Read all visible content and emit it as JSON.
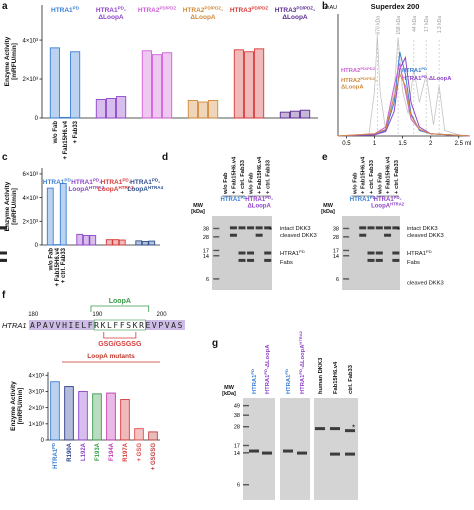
{
  "chart_data": [
    {
      "letter": "a",
      "type": "bar",
      "ylabel": "Enzyme Activity",
      "ylabel2": "[mRFU/min]",
      "ylim": [
        0,
        5800
      ],
      "yticks": [
        0,
        {
          "value": 2000,
          "label": "2×10³"
        },
        {
          "value": 4000,
          "label": "4×10³"
        }
      ],
      "categories": [
        "w/o Fab",
        "+ Fab15H6.v4",
        "+ Fab33"
      ],
      "groups": [
        {
          "name": "HTRA1",
          "sup": "PD",
          "color": "#3b7fd4",
          "values": [
            3600,
            30,
            3400
          ]
        },
        {
          "name": "HTRA1",
          "sup": "PD",
          "tail": "-",
          "line2": "ΔLoopA",
          "color": "#8e44c9",
          "values": [
            950,
            1000,
            1100
          ]
        },
        {
          "name": "HTRA2",
          "sup": "PD/PDZ",
          "color": "#d060d8",
          "values": [
            3450,
            3250,
            3350
          ]
        },
        {
          "name": "HTRA2",
          "sup": "PD/PDZ",
          "tail": "-",
          "line2": "ΔLoopA",
          "color": "#d08a3c",
          "values": [
            900,
            820,
            900
          ]
        },
        {
          "name": "HTRA3",
          "sup": "PD/PDZ",
          "color": "#d83a3a",
          "values": [
            3500,
            3400,
            3550
          ]
        },
        {
          "name": "HTRA3",
          "sup": "PD/PDZ",
          "tail": "-",
          "line2": "ΔLoopA",
          "color": "#5b2d90",
          "values": [
            300,
            350,
            400
          ]
        }
      ]
    },
    {
      "letter": "b",
      "type": "line",
      "title": "Superdex 200",
      "ylabel": "mAU",
      "xlabel": "ml",
      "xlim": [
        0.35,
        2.7
      ],
      "ylim": [
        0,
        100
      ],
      "xticks": [
        0.5,
        1,
        1.5,
        2,
        2.5
      ],
      "markers": [
        {
          "label": "670 kDa",
          "x": 1.05
        },
        {
          "label": "158 kDa",
          "x": 1.42
        },
        {
          "label": "44 kDa",
          "x": 1.7
        },
        {
          "label": "17 kDa",
          "x": 1.92
        },
        {
          "label": "1.3 kDa",
          "x": 2.15
        }
      ],
      "series": [
        {
          "color": "#c4c4c4",
          "x": [
            0.35,
            0.9,
            1.0,
            1.05,
            1.1,
            1.2,
            1.35,
            1.42,
            1.5,
            1.6,
            1.7,
            1.8,
            1.92,
            2.05,
            2.15,
            2.25,
            2.5,
            2.7
          ],
          "values": [
            0,
            1,
            40,
            90,
            40,
            5,
            40,
            88,
            40,
            20,
            60,
            30,
            55,
            10,
            45,
            5,
            1,
            0
          ]
        },
        {
          "name": "HTRA1",
          "sup": "PD",
          "color": "#3b7fd4",
          "x": [
            0.35,
            1.0,
            1.2,
            1.35,
            1.45,
            1.55,
            1.65,
            1.8,
            2.0,
            2.7
          ],
          "values": [
            0,
            1,
            5,
            30,
            75,
            55,
            20,
            5,
            2,
            0
          ]
        },
        {
          "name": "HTRA1",
          "sup": "PD",
          "tail": "-ΔLoopA",
          "color": "#8e44c9",
          "x": [
            0.35,
            1.0,
            1.2,
            1.35,
            1.45,
            1.55,
            1.65,
            1.8,
            2.0,
            2.7
          ],
          "values": [
            0,
            1,
            4,
            22,
            60,
            70,
            30,
            8,
            2,
            0
          ]
        },
        {
          "name": "HTRA2",
          "sup": "PD/PDZ",
          "color": "#d060d8",
          "x": [
            0.35,
            1.0,
            1.2,
            1.35,
            1.45,
            1.55,
            1.65,
            1.8,
            2.0,
            2.7
          ],
          "values": [
            0,
            2,
            8,
            45,
            65,
            40,
            15,
            6,
            2,
            0
          ]
        },
        {
          "name": "HTRA2",
          "sup": "PD/PDZ",
          "tail": "-",
          "line2": "ΔLoopA",
          "color": "#d08a3c",
          "x": [
            0.35,
            1.0,
            1.2,
            1.35,
            1.45,
            1.55,
            1.65,
            1.8,
            2.0,
            2.7
          ],
          "values": [
            0,
            2,
            6,
            35,
            55,
            45,
            18,
            6,
            2,
            0
          ]
        }
      ]
    },
    {
      "letter": "c",
      "type": "bar",
      "ylabel": "Enzyme Activity",
      "ylabel2": "[mRFU/min]",
      "ylim": [
        0,
        6500
      ],
      "yticks": [
        0,
        {
          "value": 2000,
          "label": "2×10³"
        },
        {
          "value": 4000,
          "label": "4×10³"
        },
        {
          "value": 6000,
          "label": "6×10³"
        }
      ],
      "categories": [
        "w/o Fab",
        "+ Fab15H6.v4",
        "+ ctrl. Fab33"
      ],
      "groups": [
        {
          "name": "HTRA1",
          "sup": "PD",
          "color": "#3b7fd4",
          "values": [
            4800,
            30,
            5200
          ]
        },
        {
          "name": "HTRA1",
          "sup": "PD",
          "tail": "-",
          "line2": "LoopA",
          "sup2": "HTRA2",
          "color": "#8e44c9",
          "values": [
            900,
            800,
            800
          ]
        },
        {
          "name": "HTRA1",
          "sup": "PD",
          "tail": "-",
          "line2": "LoopA",
          "sup2": "HTRA3",
          "color": "#d83a3a",
          "values": [
            450,
            450,
            420
          ]
        },
        {
          "name": "HTRA1",
          "sup": "PD",
          "tail": "-",
          "line2": "LoopA",
          "sup2": "HTRA4",
          "color": "#2f4f8f",
          "values": [
            350,
            300,
            330
          ]
        }
      ]
    },
    {
      "letter": "f",
      "type": "bar",
      "ylabel": "Enzyme Activity",
      "ylabel2": "[mRFU/min]",
      "ylim": [
        0,
        4200
      ],
      "subtitle": "LoopA mutants",
      "yticks": [
        0,
        {
          "value": 1000,
          "label": "1×10³"
        },
        {
          "value": 2000,
          "label": "2×10³"
        },
        {
          "value": 3000,
          "label": "3×10³"
        },
        {
          "value": 4000,
          "label": "4×10³"
        }
      ],
      "categories": [
        {
          "name": "HTRA1",
          "sup": "PD"
        },
        {
          "name": "R190A"
        },
        {
          "name": "L192A"
        },
        {
          "name": "F193A"
        },
        {
          "name": "F194A"
        },
        {
          "name": "R197A"
        },
        {
          "name": "+ GSG"
        },
        {
          "name": "+ GSGSG"
        }
      ],
      "values": [
        3600,
        3300,
        3000,
        2850,
        2900,
        2500,
        700,
        500
      ],
      "colors": [
        "#3b7fd4",
        "#2c3e8f",
        "#8e44c9",
        "#3a9a4a",
        "#c03ab0",
        "#d83a3a",
        "#e05050",
        "#c04040"
      ]
    }
  ],
  "sequence": {
    "gene": "HTRA1",
    "residues": "APAVVHIELFRKLFFSKREVPVAS",
    "positions": [
      180,
      190,
      200
    ],
    "loop": "LoopA",
    "insert": "GSG/GSGSG"
  },
  "gels": [
    {
      "letter": "d",
      "mw": "MW",
      "mw_unit": "[kDa]",
      "lanes": [
        "w/o Fab",
        "+ Fab15H6.v4",
        "+ ctrl. Fab33",
        "w/o Fab",
        "+ Fab15H6.v4",
        "+ ctrl. Fab33"
      ],
      "groups": [
        {
          "name": "HTRA1",
          "sup": "PD",
          "color": "#3b7fd4"
        },
        {
          "name": "HTRA1",
          "sup": "PD",
          "tail": "-",
          "line2": "ΔLoopA",
          "color": "#8e44c9"
        }
      ],
      "ladder": [
        38,
        28,
        17,
        14,
        6
      ],
      "annotations": [
        "intact DKK3",
        "cleaved DKK3",
        {
          "name": "HTRA1",
          "sup": "PD"
        },
        "Fabs",
        "*"
      ]
    },
    {
      "letter": "e",
      "mw": "MW",
      "mw_unit": "[kDa]",
      "lanes": [
        "w/o Fab",
        "+ Fab15H6.v4",
        "+ ctrl. Fab33",
        "w/o Fab",
        "+ Fab15H6.v4",
        "+ ctrl. Fab33"
      ],
      "groups": [
        {
          "name": "HTRA1",
          "sup": "PD",
          "color": "#3b7fd4"
        },
        {
          "name": "HTRA1",
          "sup": "PD",
          "tail": "-",
          "line2": "LoopA",
          "sup2": "HTRA2",
          "color": "#8e44c9"
        }
      ],
      "ladder": [
        38,
        28,
        17,
        14,
        6
      ],
      "annotations": [
        "intact DKK3",
        "cleaved DKK3",
        {
          "name": "HTRA1",
          "sup": "PD"
        },
        "Fabs",
        "cleaved DKK3",
        "*"
      ]
    },
    {
      "letter": "g",
      "mw": "MW",
      "mw_unit": "[kDa]",
      "lanes": [
        {
          "name": "HTRA1",
          "sup": "PD",
          "color": "#3b7fd4"
        },
        {
          "name": "HTRA1",
          "sup": "PD",
          "tail": "-ΔLoopA",
          "color": "#8e44c9"
        },
        {
          "name": "HTRA1",
          "sup": "PD",
          "color": "#3b7fd4"
        },
        {
          "name": "HTRA1",
          "sup": "PD",
          "tail": "-ΔLoopA",
          "sup2": "HTRA2",
          "color": "#8e44c9"
        },
        {
          "name": "human DKK3"
        },
        {
          "name": "Fab15H6.v4"
        },
        {
          "name": "ctrl. Fab33"
        }
      ],
      "ladder": [
        49,
        38,
        28,
        17,
        14,
        6
      ],
      "annotations": [
        "*"
      ]
    }
  ]
}
